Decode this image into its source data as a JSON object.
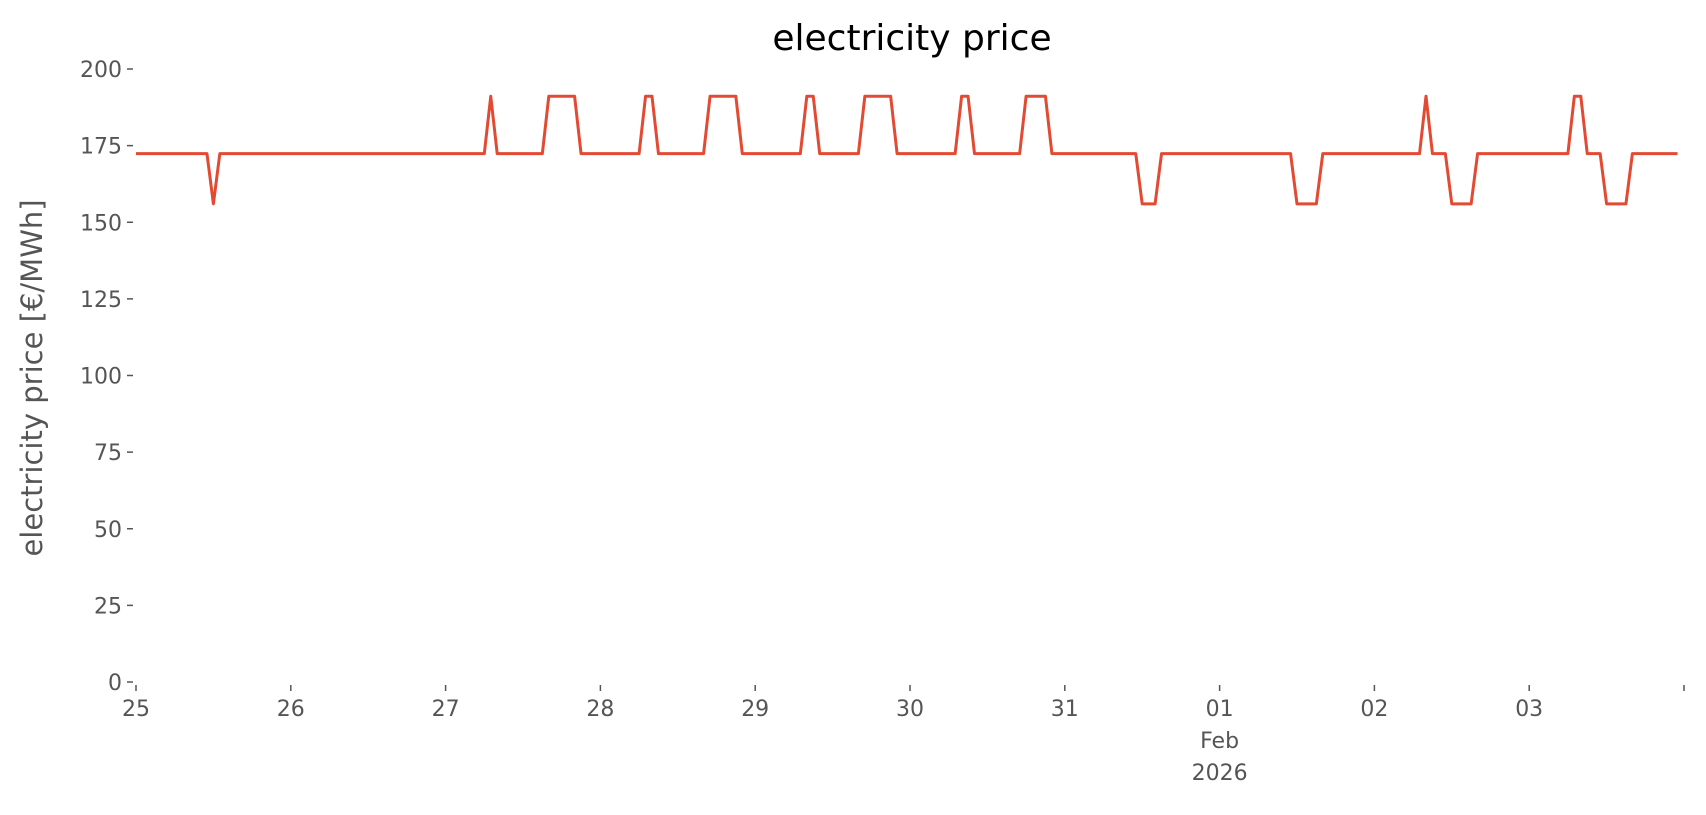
{
  "chart_data": {
    "type": "line",
    "title": "electricity price",
    "ylabel": "electricity price [€/MWh]",
    "x": [
      0,
      1,
      2,
      3,
      4,
      5,
      6,
      7,
      8,
      9,
      10,
      11,
      12,
      13,
      14,
      15,
      16,
      17,
      18,
      19,
      20,
      21,
      22,
      23,
      24,
      25,
      26,
      27,
      28,
      29,
      30,
      31,
      32,
      33,
      34,
      35,
      36,
      37,
      38,
      39,
      40,
      41,
      42,
      43,
      44,
      45,
      46,
      47,
      48,
      49,
      50,
      51,
      52,
      53,
      54,
      55,
      56,
      57,
      58,
      59,
      60,
      61,
      62,
      63,
      64,
      65,
      66,
      67,
      68,
      69,
      70,
      71,
      72,
      73,
      74,
      75,
      76,
      77,
      78,
      79,
      80,
      81,
      82,
      83,
      84,
      85,
      86,
      87,
      88,
      89,
      90,
      91,
      92,
      93,
      94,
      95,
      96,
      97,
      98,
      99,
      100,
      101,
      102,
      103,
      104,
      105,
      106,
      107,
      108,
      109,
      110,
      111,
      112,
      113,
      114,
      115,
      116,
      117,
      118,
      119,
      120,
      121,
      122,
      123,
      124,
      125,
      126,
      127,
      128,
      129,
      130,
      131,
      132,
      133,
      134,
      135,
      136,
      137,
      138,
      139,
      140,
      141,
      142,
      143,
      144,
      145,
      146,
      147,
      148,
      149,
      150,
      151,
      152,
      153,
      154,
      155,
      156,
      157,
      158,
      159,
      160,
      161,
      162,
      163,
      164,
      165,
      166,
      167,
      168,
      169,
      170,
      171,
      172,
      173,
      174,
      175,
      176,
      177,
      178,
      179,
      180,
      181,
      182,
      183,
      184,
      185,
      186,
      187,
      188,
      189,
      190,
      191,
      192,
      193,
      194,
      195,
      196,
      197,
      198,
      199,
      200,
      201,
      202,
      203,
      204,
      205,
      206,
      207,
      208,
      209,
      210,
      211,
      212,
      213,
      214,
      215,
      216,
      217,
      218,
      219,
      220,
      221,
      222,
      223,
      224,
      225,
      226,
      227,
      228,
      229,
      230,
      231,
      232,
      233,
      234,
      235,
      236,
      237,
      238,
      239
    ],
    "series": [
      {
        "name": "electricity price",
        "color": "#e24a33",
        "values": [
          172.4,
          172.4,
          172.4,
          172.4,
          172.4,
          172.4,
          172.4,
          172.4,
          172.4,
          172.4,
          172.4,
          172.4,
          156.0,
          172.4,
          172.4,
          172.4,
          172.4,
          172.4,
          172.4,
          172.4,
          172.4,
          172.4,
          172.4,
          172.4,
          172.4,
          172.4,
          172.4,
          172.4,
          172.4,
          172.4,
          172.4,
          172.4,
          172.4,
          172.4,
          172.4,
          172.4,
          172.4,
          172.4,
          172.4,
          172.4,
          172.4,
          172.4,
          172.4,
          172.4,
          172.4,
          172.4,
          172.4,
          172.4,
          172.4,
          172.4,
          172.4,
          172.4,
          172.4,
          172.4,
          172.4,
          191.1,
          172.4,
          172.4,
          172.4,
          172.4,
          172.4,
          172.4,
          172.4,
          172.4,
          191.1,
          191.1,
          191.1,
          191.1,
          191.1,
          172.4,
          172.4,
          172.4,
          172.4,
          172.4,
          172.4,
          172.4,
          172.4,
          172.4,
          172.4,
          191.1,
          191.1,
          172.4,
          172.4,
          172.4,
          172.4,
          172.4,
          172.4,
          172.4,
          172.4,
          191.1,
          191.1,
          191.1,
          191.1,
          191.1,
          172.4,
          172.4,
          172.4,
          172.4,
          172.4,
          172.4,
          172.4,
          172.4,
          172.4,
          172.4,
          191.1,
          191.1,
          172.4,
          172.4,
          172.4,
          172.4,
          172.4,
          172.4,
          172.4,
          191.1,
          191.1,
          191.1,
          191.1,
          191.1,
          172.4,
          172.4,
          172.4,
          172.4,
          172.4,
          172.4,
          172.4,
          172.4,
          172.4,
          172.4,
          191.1,
          191.1,
          172.4,
          172.4,
          172.4,
          172.4,
          172.4,
          172.4,
          172.4,
          172.4,
          191.1,
          191.1,
          191.1,
          191.1,
          172.4,
          172.4,
          172.4,
          172.4,
          172.4,
          172.4,
          172.4,
          172.4,
          172.4,
          172.4,
          172.4,
          172.4,
          172.4,
          172.4,
          156.0,
          156.0,
          156.0,
          172.4,
          172.4,
          172.4,
          172.4,
          172.4,
          172.4,
          172.4,
          172.4,
          172.4,
          172.4,
          172.4,
          172.4,
          172.4,
          172.4,
          172.4,
          172.4,
          172.4,
          172.4,
          172.4,
          172.4,
          172.4,
          156.0,
          156.0,
          156.0,
          156.0,
          172.4,
          172.4,
          172.4,
          172.4,
          172.4,
          172.4,
          172.4,
          172.4,
          172.4,
          172.4,
          172.4,
          172.4,
          172.4,
          172.4,
          172.4,
          172.4,
          191.1,
          172.4,
          172.4,
          172.4,
          156.0,
          156.0,
          156.0,
          156.0,
          172.4,
          172.4,
          172.4,
          172.4,
          172.4,
          172.4,
          172.4,
          172.4,
          172.4,
          172.4,
          172.4,
          172.4,
          172.4,
          172.4,
          172.4,
          191.1,
          191.1,
          172.4,
          172.4,
          172.4,
          156.0,
          156.0,
          156.0,
          156.0,
          172.4,
          172.4,
          172.4,
          172.4,
          172.4,
          172.4,
          172.4,
          172.4
        ]
      }
    ],
    "xlim": [
      0,
      240
    ],
    "xticks": [
      {
        "value": 0,
        "label": "25"
      },
      {
        "value": 24,
        "label": "26"
      },
      {
        "value": 48,
        "label": "27"
      },
      {
        "value": 72,
        "label": "28"
      },
      {
        "value": 96,
        "label": "29"
      },
      {
        "value": 120,
        "label": "30"
      },
      {
        "value": 144,
        "label": "31"
      },
      {
        "value": 168,
        "label": [
          "01",
          "Feb",
          "2026"
        ]
      },
      {
        "value": 192,
        "label": "02"
      },
      {
        "value": 216,
        "label": "03"
      },
      {
        "value": 240,
        "label": null
      }
    ],
    "ylim": [
      0,
      200
    ],
    "yticks": [
      0,
      25,
      50,
      75,
      100,
      125,
      150,
      175,
      200
    ],
    "grid": false
  }
}
